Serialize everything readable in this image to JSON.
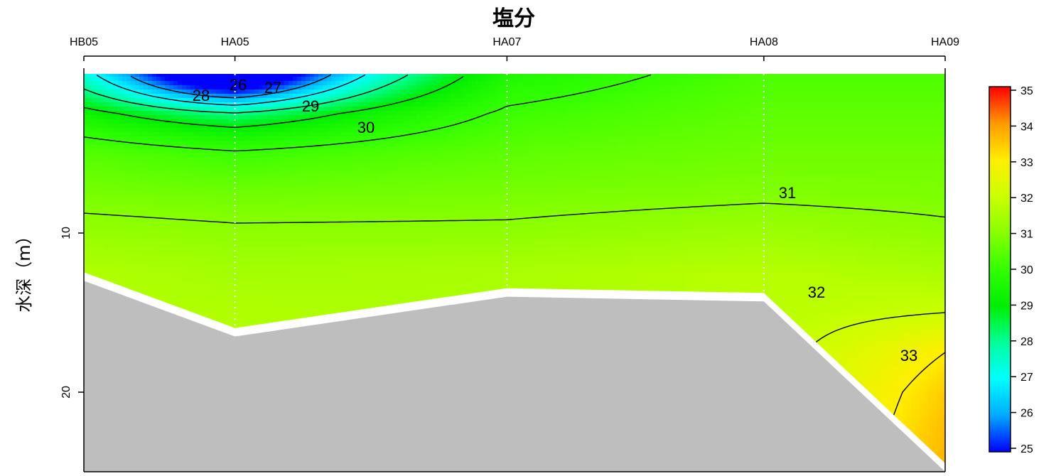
{
  "chart_data": {
    "type": "heatmap",
    "title": "塩分",
    "ylabel": "水深（m）",
    "stations": [
      "HB05",
      "HA05",
      "HA07",
      "HA08",
      "HA09"
    ],
    "station_distance": [
      0,
      10,
      28,
      45,
      57
    ],
    "ylim": [
      25,
      0
    ],
    "yticks": [
      10,
      20
    ],
    "seafloor_depth": [
      13,
      16.5,
      14,
      14.3,
      25
    ],
    "colorbar": {
      "min": 25,
      "max": 35,
      "ticks": [
        25,
        26,
        27,
        28,
        29,
        30,
        31,
        32,
        33,
        34,
        35
      ],
      "colors": [
        "#0000ff",
        "#00aaff",
        "#00ffff",
        "#00ff99",
        "#00ee00",
        "#33ff00",
        "#88ff00",
        "#ccff00",
        "#ffee00",
        "#ff9900",
        "#ff0000"
      ]
    },
    "contour_labels": [
      "26",
      "27",
      "28",
      "29",
      "30",
      "31",
      "32",
      "33"
    ],
    "salinity_grid": {
      "depths": [
        0,
        2.5,
        5,
        7.5,
        10,
        12.5,
        15,
        17.5,
        20,
        22.5,
        25
      ],
      "profiles": [
        [
          28.0,
          29.5,
          30.4,
          30.8,
          31.2,
          31.6,
          null,
          null,
          null,
          null,
          null
        ],
        [
          25.8,
          28.8,
          30.1,
          30.7,
          31.1,
          31.4,
          31.6,
          null,
          null,
          null,
          null
        ],
        [
          29.6,
          30.1,
          30.5,
          30.8,
          31.1,
          31.5,
          null,
          null,
          null,
          null,
          null
        ],
        [
          30.3,
          30.5,
          30.7,
          30.9,
          31.3,
          31.7,
          null,
          null,
          null,
          null,
          null
        ],
        [
          30.3,
          30.5,
          30.7,
          30.85,
          31.1,
          31.5,
          32.0,
          33.0,
          33.4,
          33.6,
          33.7
        ]
      ]
    }
  }
}
